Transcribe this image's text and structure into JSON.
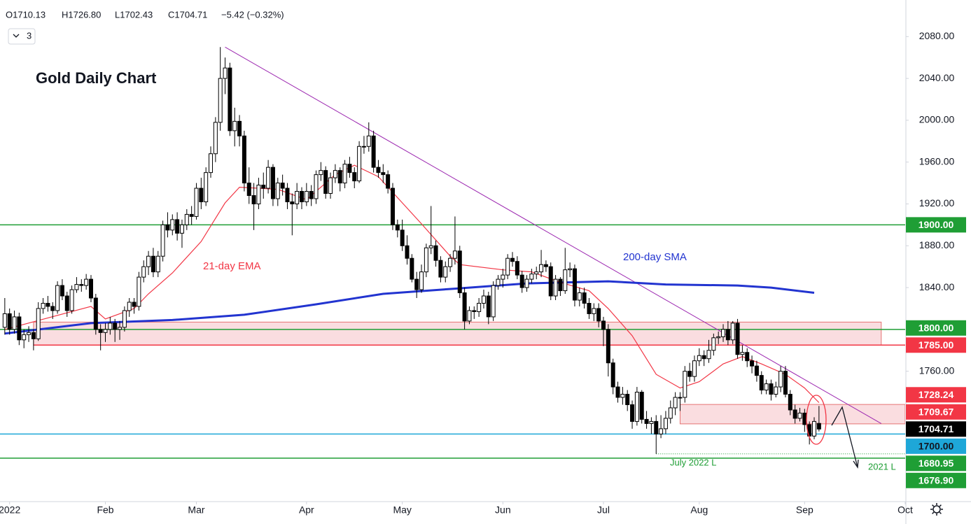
{
  "chart_data": {
    "type": "candlestick",
    "title": "Gold Daily Chart",
    "header": [
      "O1710.13",
      "H1726.80",
      "L1702.43",
      "C1704.71",
      "−5.42 (−0.32%)"
    ],
    "indicator_count": "3",
    "xlim": [
      -1,
      188
    ],
    "ylim": [
      1636,
      2115
    ],
    "xticks": [
      {
        "value": 1,
        "label": "2022"
      },
      {
        "value": 21,
        "label": "Feb"
      },
      {
        "value": 40,
        "label": "Mar"
      },
      {
        "value": 63,
        "label": "Apr"
      },
      {
        "value": 83,
        "label": "May"
      },
      {
        "value": 104,
        "label": "Jun"
      },
      {
        "value": 125,
        "label": "Jul"
      },
      {
        "value": 145,
        "label": "Aug"
      },
      {
        "value": 167,
        "label": "Sep"
      },
      {
        "value": 188,
        "label": "Oct"
      }
    ],
    "yticks": [
      {
        "value": 1760,
        "label": "1760.00"
      },
      {
        "value": 1840,
        "label": "1840.00"
      },
      {
        "value": 1880,
        "label": "1880.00"
      },
      {
        "value": 1920,
        "label": "1920.00"
      },
      {
        "value": 1960,
        "label": "1960.00"
      },
      {
        "value": 2000,
        "label": "2000.00"
      },
      {
        "value": 2040,
        "label": "2040.00"
      },
      {
        "value": 2080,
        "label": "2080.00"
      }
    ],
    "up_color": "#ffffff",
    "down_color": "#000000",
    "ohlc": [
      [
        1802,
        1830,
        1795,
        1815
      ],
      [
        1815,
        1820,
        1795,
        1800
      ],
      [
        1800,
        1818,
        1796,
        1812
      ],
      [
        1812,
        1816,
        1785,
        1790
      ],
      [
        1790,
        1800,
        1782,
        1795
      ],
      [
        1795,
        1803,
        1788,
        1797
      ],
      [
        1797,
        1800,
        1780,
        1791
      ],
      [
        1791,
        1826,
        1789,
        1820
      ],
      [
        1820,
        1830,
        1815,
        1825
      ],
      [
        1825,
        1832,
        1817,
        1822
      ],
      [
        1822,
        1826,
        1810,
        1818
      ],
      [
        1818,
        1846,
        1815,
        1842
      ],
      [
        1842,
        1848,
        1828,
        1832
      ],
      [
        1832,
        1836,
        1812,
        1818
      ],
      [
        1818,
        1842,
        1815,
        1838
      ],
      [
        1838,
        1850,
        1835,
        1843
      ],
      [
        1843,
        1848,
        1836,
        1842
      ],
      [
        1842,
        1853,
        1838,
        1848
      ],
      [
        1848,
        1852,
        1826,
        1830
      ],
      [
        1830,
        1834,
        1795,
        1800
      ],
      [
        1800,
        1805,
        1780,
        1797
      ],
      [
        1797,
        1806,
        1788,
        1800
      ],
      [
        1800,
        1812,
        1795,
        1806
      ],
      [
        1806,
        1810,
        1788,
        1800
      ],
      [
        1800,
        1808,
        1790,
        1802
      ],
      [
        1802,
        1822,
        1798,
        1818
      ],
      [
        1818,
        1830,
        1812,
        1826
      ],
      [
        1826,
        1830,
        1815,
        1822
      ],
      [
        1822,
        1855,
        1818,
        1850
      ],
      [
        1850,
        1866,
        1845,
        1860
      ],
      [
        1860,
        1875,
        1852,
        1870
      ],
      [
        1870,
        1878,
        1850,
        1855
      ],
      [
        1855,
        1875,
        1850,
        1870
      ],
      [
        1870,
        1904,
        1865,
        1900
      ],
      [
        1900,
        1912,
        1888,
        1895
      ],
      [
        1895,
        1910,
        1890,
        1905
      ],
      [
        1905,
        1912,
        1885,
        1892
      ],
      [
        1892,
        1905,
        1878,
        1900
      ],
      [
        1900,
        1915,
        1895,
        1910
      ],
      [
        1910,
        1918,
        1900,
        1908
      ],
      [
        1908,
        1940,
        1905,
        1935
      ],
      [
        1935,
        1945,
        1915,
        1922
      ],
      [
        1922,
        1955,
        1918,
        1950
      ],
      [
        1950,
        1975,
        1945,
        1968
      ],
      [
        1968,
        2003,
        1960,
        1998
      ],
      [
        1998,
        2070,
        1990,
        2040
      ],
      [
        2040,
        2060,
        2025,
        2050
      ],
      [
        2050,
        2055,
        1985,
        1990
      ],
      [
        1990,
        2012,
        1975,
        1999
      ],
      [
        1999,
        2005,
        1975,
        1985
      ],
      [
        1985,
        1990,
        1932,
        1940
      ],
      [
        1940,
        1955,
        1920,
        1928
      ],
      [
        1928,
        1940,
        1895,
        1920
      ],
      [
        1920,
        1945,
        1915,
        1938
      ],
      [
        1938,
        1950,
        1925,
        1935
      ],
      [
        1935,
        1962,
        1930,
        1955
      ],
      [
        1955,
        1958,
        1918,
        1925
      ],
      [
        1925,
        1945,
        1918,
        1940
      ],
      [
        1940,
        1948,
        1928,
        1935
      ],
      [
        1935,
        1940,
        1915,
        1922
      ],
      [
        1922,
        1930,
        1890,
        1920
      ],
      [
        1920,
        1940,
        1915,
        1932
      ],
      [
        1932,
        1936,
        1915,
        1922
      ],
      [
        1922,
        1940,
        1918,
        1932
      ],
      [
        1932,
        1938,
        1918,
        1925
      ],
      [
        1925,
        1952,
        1920,
        1948
      ],
      [
        1948,
        1960,
        1942,
        1952
      ],
      [
        1952,
        1956,
        1925,
        1930
      ],
      [
        1930,
        1950,
        1925,
        1945
      ],
      [
        1945,
        1958,
        1940,
        1952
      ],
      [
        1952,
        1955,
        1932,
        1940
      ],
      [
        1940,
        1962,
        1935,
        1958
      ],
      [
        1958,
        1965,
        1945,
        1950
      ],
      [
        1950,
        1955,
        1935,
        1942
      ],
      [
        1942,
        1980,
        1940,
        1975
      ],
      [
        1975,
        1985,
        1968,
        1975
      ],
      [
        1975,
        1998,
        1970,
        1985
      ],
      [
        1985,
        1990,
        1950,
        1955
      ],
      [
        1955,
        1962,
        1945,
        1950
      ],
      [
        1950,
        1958,
        1940,
        1948
      ],
      [
        1948,
        1952,
        1930,
        1935
      ],
      [
        1935,
        1940,
        1895,
        1900
      ],
      [
        1900,
        1905,
        1888,
        1895
      ],
      [
        1895,
        1905,
        1875,
        1880
      ],
      [
        1880,
        1890,
        1862,
        1868
      ],
      [
        1868,
        1872,
        1845,
        1848
      ],
      [
        1848,
        1855,
        1830,
        1838
      ],
      [
        1838,
        1862,
        1835,
        1855
      ],
      [
        1855,
        1882,
        1850,
        1878
      ],
      [
        1878,
        1918,
        1872,
        1880
      ],
      [
        1880,
        1885,
        1860,
        1866
      ],
      [
        1866,
        1870,
        1845,
        1850
      ],
      [
        1850,
        1865,
        1845,
        1860
      ],
      [
        1860,
        1872,
        1855,
        1868
      ],
      [
        1868,
        1908,
        1862,
        1875
      ],
      [
        1875,
        1880,
        1830,
        1835
      ],
      [
        1835,
        1840,
        1800,
        1808
      ],
      [
        1808,
        1822,
        1805,
        1818
      ],
      [
        1818,
        1822,
        1810,
        1817
      ],
      [
        1817,
        1830,
        1812,
        1825
      ],
      [
        1825,
        1838,
        1820,
        1832
      ],
      [
        1832,
        1836,
        1805,
        1812
      ],
      [
        1812,
        1846,
        1808,
        1842
      ],
      [
        1842,
        1852,
        1838,
        1848
      ],
      [
        1848,
        1858,
        1840,
        1852
      ],
      [
        1852,
        1872,
        1848,
        1868
      ],
      [
        1868,
        1874,
        1860,
        1865
      ],
      [
        1865,
        1870,
        1848,
        1852
      ],
      [
        1852,
        1856,
        1835,
        1840
      ],
      [
        1840,
        1852,
        1836,
        1848
      ],
      [
        1848,
        1858,
        1844,
        1853
      ],
      [
        1853,
        1860,
        1848,
        1855
      ],
      [
        1855,
        1876,
        1850,
        1862
      ],
      [
        1862,
        1866,
        1855,
        1860
      ],
      [
        1860,
        1864,
        1828,
        1832
      ],
      [
        1832,
        1852,
        1828,
        1848
      ],
      [
        1848,
        1850,
        1832,
        1837
      ],
      [
        1837,
        1878,
        1834,
        1857
      ],
      [
        1857,
        1864,
        1850,
        1858
      ],
      [
        1858,
        1862,
        1822,
        1828
      ],
      [
        1828,
        1840,
        1822,
        1835
      ],
      [
        1835,
        1840,
        1820,
        1825
      ],
      [
        1825,
        1830,
        1810,
        1815
      ],
      [
        1815,
        1825,
        1808,
        1820
      ],
      [
        1820,
        1825,
        1802,
        1808
      ],
      [
        1808,
        1812,
        1784,
        1800
      ],
      [
        1800,
        1805,
        1755,
        1768
      ],
      [
        1768,
        1772,
        1738,
        1745
      ],
      [
        1745,
        1750,
        1730,
        1735
      ],
      [
        1735,
        1745,
        1728,
        1738
      ],
      [
        1738,
        1742,
        1722,
        1728
      ],
      [
        1728,
        1732,
        1705,
        1712
      ],
      [
        1712,
        1745,
        1708,
        1740
      ],
      [
        1740,
        1742,
        1710,
        1714
      ],
      [
        1714,
        1722,
        1705,
        1710
      ],
      [
        1710,
        1716,
        1700,
        1712
      ],
      [
        1712,
        1718,
        1681,
        1700
      ],
      [
        1700,
        1718,
        1696,
        1705
      ],
      [
        1705,
        1722,
        1700,
        1715
      ],
      [
        1715,
        1732,
        1710,
        1725
      ],
      [
        1725,
        1740,
        1718,
        1735
      ],
      [
        1735,
        1740,
        1722,
        1735
      ],
      [
        1735,
        1765,
        1730,
        1760
      ],
      [
        1760,
        1768,
        1750,
        1755
      ],
      [
        1755,
        1775,
        1750,
        1770
      ],
      [
        1770,
        1782,
        1765,
        1775
      ],
      [
        1775,
        1780,
        1765,
        1772
      ],
      [
        1772,
        1790,
        1768,
        1780
      ],
      [
        1780,
        1796,
        1775,
        1792
      ],
      [
        1792,
        1798,
        1786,
        1793
      ],
      [
        1793,
        1805,
        1788,
        1800
      ],
      [
        1800,
        1808,
        1785,
        1790
      ],
      [
        1790,
        1808,
        1786,
        1806
      ],
      [
        1806,
        1810,
        1772,
        1776
      ],
      [
        1776,
        1785,
        1770,
        1778
      ],
      [
        1778,
        1782,
        1764,
        1770
      ],
      [
        1770,
        1775,
        1758,
        1765
      ],
      [
        1765,
        1770,
        1750,
        1756
      ],
      [
        1756,
        1760,
        1738,
        1742
      ],
      [
        1742,
        1752,
        1738,
        1748
      ],
      [
        1748,
        1752,
        1732,
        1738
      ],
      [
        1738,
        1750,
        1735,
        1745
      ],
      [
        1745,
        1765,
        1740,
        1760
      ],
      [
        1760,
        1765,
        1735,
        1738
      ],
      [
        1738,
        1742,
        1718,
        1723
      ],
      [
        1723,
        1728,
        1710,
        1715
      ],
      [
        1715,
        1725,
        1712,
        1720
      ],
      [
        1720,
        1724,
        1702,
        1709
      ],
      [
        1709,
        1712,
        1690,
        1698
      ],
      [
        1698,
        1716,
        1695,
        1712
      ],
      [
        1710.13,
        1726.8,
        1702.43,
        1704.71
      ]
    ],
    "last_label": "1704.71",
    "ema": {
      "name": "21-day EMA",
      "color": "#f23645",
      "x": [
        0,
        18,
        21,
        27,
        30,
        35,
        41,
        46,
        49,
        57,
        63,
        69,
        73,
        78,
        83,
        87,
        93,
        95,
        104,
        110,
        116,
        122,
        126,
        131,
        136,
        141,
        145,
        150,
        154,
        158,
        163,
        167,
        170
      ],
      "values": [
        1800,
        1822,
        1810,
        1820,
        1834,
        1854,
        1884,
        1921,
        1936,
        1934,
        1924,
        1948,
        1957,
        1946,
        1921,
        1901,
        1870,
        1862,
        1857,
        1855,
        1845,
        1837,
        1820,
        1794,
        1757,
        1744,
        1750,
        1767,
        1774,
        1767,
        1757,
        1744,
        1730
      ]
    },
    "sma": {
      "name": "200-day SMA",
      "color": "#2234d0",
      "x": [
        0,
        18,
        35,
        50,
        65,
        79,
        94,
        109,
        126,
        138,
        153,
        160,
        169
      ],
      "values": [
        1796,
        1806,
        1809,
        1814,
        1824,
        1834,
        1839,
        1844,
        1846,
        1843,
        1842,
        1840,
        1835
      ]
    },
    "trendline": {
      "color": "#9c27b0",
      "x": [
        46,
        183
      ],
      "values": [
        2070,
        1710
      ]
    },
    "zones": [
      {
        "low": 1785,
        "high": 1807,
        "start": 6,
        "end": 183,
        "color": "#f7c6cb"
      },
      {
        "low": 1709.67,
        "high": 1728.24,
        "start": 141,
        "end": 188,
        "color": "#f7c6cb",
        "low_label": "1709.67",
        "high_label": "1728.24",
        "label_color": "#f23645"
      }
    ],
    "levels": [
      {
        "value": 1900,
        "label": "1900.00",
        "color": "#1f9e35",
        "style": "solid"
      },
      {
        "value": 1800,
        "label": "1800.00",
        "color": "#1f9e35",
        "style": "solid"
      },
      {
        "value": 1785,
        "label": "1785.00",
        "color": "#f23645",
        "style": "solid",
        "start": 6
      },
      {
        "value": 1700,
        "label": "1700.00",
        "color": "#1ea7d8",
        "style": "solid",
        "text_color": "#131722"
      },
      {
        "value": 1680.95,
        "label": "1680.95",
        "color": "#1f9e35",
        "style": "dotted",
        "start": 136
      },
      {
        "value": 1676.9,
        "label": "1676.90",
        "color": "#1f9e35",
        "style": "solid"
      }
    ],
    "annotations": {
      "july_low": "July 2022 L",
      "low_2021": "2021 L"
    }
  }
}
